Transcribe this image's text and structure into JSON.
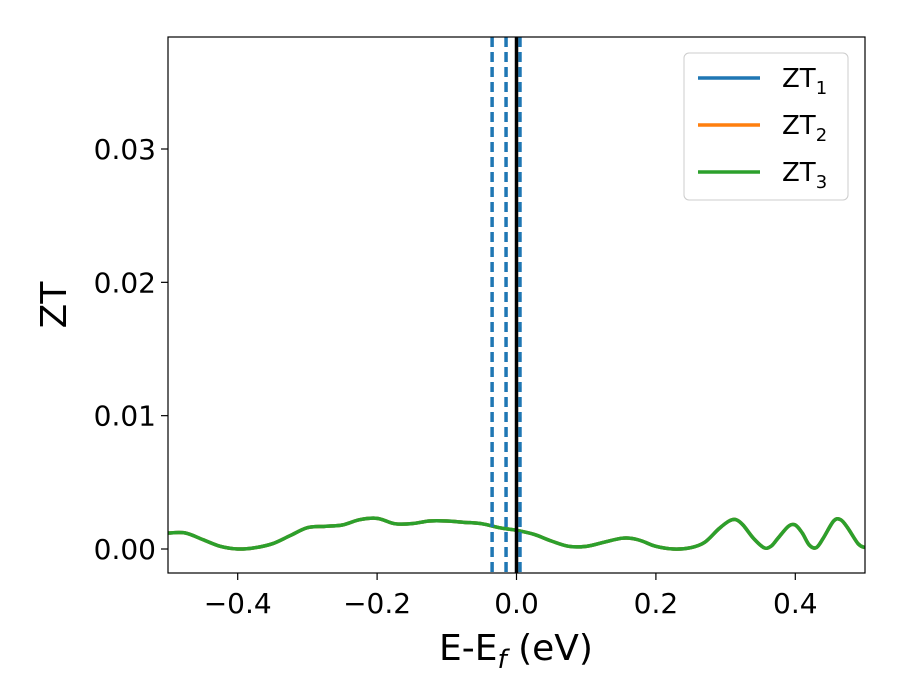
{
  "chart_data": {
    "type": "line",
    "xlabel": {
      "main": "E-E",
      "sub": "f",
      "unit": " (eV)"
    },
    "ylabel": "ZT",
    "xlim": [
      -0.5,
      0.5
    ],
    "ylim": [
      -0.0018,
      0.0384
    ],
    "grid": false,
    "legend_position": "top-right",
    "x_ticks": [
      {
        "value": -0.4,
        "label": "−0.4"
      },
      {
        "value": -0.2,
        "label": "−0.2"
      },
      {
        "value": 0.0,
        "label": "0.0"
      },
      {
        "value": 0.2,
        "label": "0.2"
      },
      {
        "value": 0.4,
        "label": "0.4"
      }
    ],
    "y_ticks": [
      {
        "value": 0.0,
        "label": "0.00"
      },
      {
        "value": 0.01,
        "label": "0.01"
      },
      {
        "value": 0.02,
        "label": "0.02"
      },
      {
        "value": 0.03,
        "label": "0.03"
      }
    ],
    "series": [
      {
        "name": "ZT",
        "sub": "1",
        "color": "#1f77b4",
        "x": [
          -0.5,
          -0.475,
          -0.45,
          -0.425,
          -0.4,
          -0.375,
          -0.35,
          -0.325,
          -0.3,
          -0.275,
          -0.25,
          -0.225,
          -0.2,
          -0.175,
          -0.15,
          -0.125,
          -0.1,
          -0.075,
          -0.05,
          -0.025,
          0.0,
          0.025,
          0.05,
          0.075,
          0.1,
          0.125,
          0.15,
          0.165,
          0.18,
          0.2,
          0.225,
          0.25,
          0.27,
          0.29,
          0.305,
          0.315,
          0.325,
          0.34,
          0.355,
          0.365,
          0.375,
          0.39,
          0.4,
          0.41,
          0.42,
          0.43,
          0.44,
          0.455,
          0.465,
          0.475,
          0.49,
          0.5
        ],
        "y": [
          0.0012,
          0.0012,
          0.0007,
          0.0002,
          0.0,
          0.0001,
          0.0004,
          0.001,
          0.0016,
          0.0017,
          0.0018,
          0.0022,
          0.0023,
          0.0019,
          0.0019,
          0.0021,
          0.0021,
          0.002,
          0.0019,
          0.0016,
          0.0014,
          0.0011,
          0.0006,
          0.0002,
          0.0002,
          0.0005,
          0.0008,
          0.0008,
          0.0006,
          0.0002,
          0.0,
          0.0001,
          0.0005,
          0.0015,
          0.0021,
          0.0022,
          0.0018,
          0.0008,
          0.0001,
          0.0002,
          0.0008,
          0.0017,
          0.0018,
          0.0012,
          0.0003,
          0.0001,
          0.0008,
          0.0021,
          0.0022,
          0.0016,
          0.0004,
          0.0001
        ]
      },
      {
        "name": "ZT",
        "sub": "2",
        "color": "#ff7f0e",
        "x": [
          -0.5,
          -0.475,
          -0.45,
          -0.425,
          -0.4,
          -0.375,
          -0.35,
          -0.325,
          -0.3,
          -0.275,
          -0.25,
          -0.225,
          -0.2,
          -0.175,
          -0.15,
          -0.125,
          -0.1,
          -0.075,
          -0.05,
          -0.025,
          0.0,
          0.025,
          0.05,
          0.075,
          0.1,
          0.125,
          0.15,
          0.165,
          0.18,
          0.2,
          0.225,
          0.25,
          0.27,
          0.29,
          0.305,
          0.315,
          0.325,
          0.34,
          0.355,
          0.365,
          0.375,
          0.39,
          0.4,
          0.41,
          0.42,
          0.43,
          0.44,
          0.455,
          0.465,
          0.475,
          0.49,
          0.5
        ],
        "y": [
          0.0012,
          0.0012,
          0.0007,
          0.0002,
          0.0,
          0.0001,
          0.0004,
          0.001,
          0.0016,
          0.0017,
          0.0018,
          0.0022,
          0.0023,
          0.0019,
          0.0019,
          0.0021,
          0.0021,
          0.002,
          0.0019,
          0.0016,
          0.0014,
          0.0011,
          0.0006,
          0.0002,
          0.0002,
          0.0005,
          0.0008,
          0.0008,
          0.0006,
          0.0002,
          0.0,
          0.0001,
          0.0005,
          0.0015,
          0.0021,
          0.0022,
          0.0018,
          0.0008,
          0.0001,
          0.0002,
          0.0008,
          0.0017,
          0.0018,
          0.0012,
          0.0003,
          0.0001,
          0.0008,
          0.0021,
          0.0022,
          0.0016,
          0.0004,
          0.0001
        ]
      },
      {
        "name": "ZT",
        "sub": "3",
        "color": "#2ca02c",
        "x": [
          -0.5,
          -0.475,
          -0.45,
          -0.425,
          -0.4,
          -0.375,
          -0.35,
          -0.325,
          -0.3,
          -0.275,
          -0.25,
          -0.225,
          -0.2,
          -0.175,
          -0.15,
          -0.125,
          -0.1,
          -0.075,
          -0.05,
          -0.025,
          0.0,
          0.025,
          0.05,
          0.075,
          0.1,
          0.125,
          0.15,
          0.165,
          0.18,
          0.2,
          0.225,
          0.25,
          0.27,
          0.29,
          0.305,
          0.315,
          0.325,
          0.34,
          0.355,
          0.365,
          0.375,
          0.39,
          0.4,
          0.41,
          0.42,
          0.43,
          0.44,
          0.455,
          0.465,
          0.475,
          0.49,
          0.5
        ],
        "y": [
          0.0012,
          0.0012,
          0.0007,
          0.0002,
          0.0,
          0.0001,
          0.0004,
          0.001,
          0.0016,
          0.0017,
          0.0018,
          0.0022,
          0.0023,
          0.0019,
          0.0019,
          0.0021,
          0.0021,
          0.002,
          0.0019,
          0.0016,
          0.0014,
          0.0011,
          0.0006,
          0.0002,
          0.0002,
          0.0005,
          0.0008,
          0.0008,
          0.0006,
          0.0002,
          0.0,
          0.0001,
          0.0005,
          0.0015,
          0.0021,
          0.0022,
          0.0018,
          0.0008,
          0.0001,
          0.0002,
          0.0008,
          0.0017,
          0.0018,
          0.0012,
          0.0003,
          0.0001,
          0.0008,
          0.0021,
          0.0022,
          0.0016,
          0.0004,
          0.0001
        ]
      }
    ],
    "vertical_lines": [
      {
        "x": -0.035,
        "style": "dashed",
        "color": "#1f77b4"
      },
      {
        "x": -0.015,
        "style": "dashed",
        "color": "#1f77b4"
      },
      {
        "x": 0.005,
        "style": "dashed",
        "color": "#1f77b4"
      },
      {
        "x": 0.0,
        "style": "solid",
        "color": "#000000"
      }
    ]
  }
}
